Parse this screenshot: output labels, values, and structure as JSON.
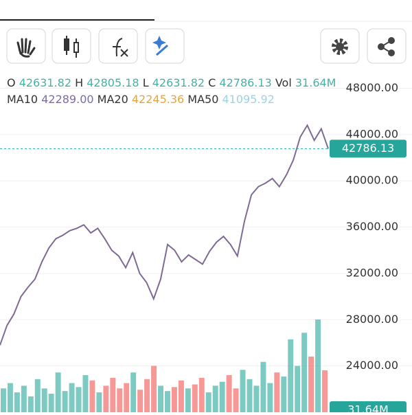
{
  "header": {
    "open_label": "O",
    "open": "42631.82",
    "high_label": "H",
    "high": "42805.18",
    "low_label": "L",
    "low": "42631.82",
    "close_label": "C",
    "close": "42786.13",
    "vol_label": "Vol",
    "vol": "31.64M",
    "ma10_label": "MA10",
    "ma10": "42289.00",
    "ma20_label": "MA20",
    "ma20": "42245.36",
    "ma50_label": "MA50",
    "ma50": "41095.92"
  },
  "chart_data": {
    "type": "line",
    "series": [
      {
        "color": "#7d6a95",
        "values": [
          25800,
          27500,
          28500,
          30000,
          30800,
          31500,
          33000,
          34200,
          35000,
          35300,
          35700,
          35900,
          36200,
          35500,
          35900,
          35000,
          34000,
          33500,
          32500,
          33800,
          32000,
          31200,
          29800,
          31500,
          34500,
          34000,
          33000,
          33600,
          33200,
          32800,
          33900,
          34700,
          35200,
          34500,
          33500,
          36500,
          38800,
          39500,
          39800,
          40200,
          39500,
          40500,
          41800,
          43800,
          44800,
          43500,
          44500,
          42786.13
        ]
      }
    ],
    "volume": {
      "up_color": "#26a69a",
      "down_color": "#ef5350",
      "values": [
        18,
        22,
        15,
        20,
        12,
        25,
        18,
        14,
        30,
        16,
        22,
        19,
        28,
        24,
        15,
        20,
        26,
        18,
        22,
        30,
        17,
        25,
        35,
        20,
        16,
        19,
        24,
        18,
        21,
        26,
        15,
        20,
        23,
        28,
        18,
        32,
        25,
        20,
        38,
        22,
        30,
        27,
        55,
        35,
        60,
        42,
        70,
        31.64
      ]
    },
    "last_price": 42786.13,
    "last_volume": "31.64M",
    "last_color": "#26a69a",
    "ylim": [
      20000,
      49100
    ],
    "yticks": [
      {
        "value": 24000,
        "label": "24000.00"
      },
      {
        "value": 28000,
        "label": "28000.00"
      },
      {
        "value": 32000,
        "label": "32000.00"
      },
      {
        "value": 36000,
        "label": "36000.00"
      },
      {
        "value": 40000,
        "label": "40000.00"
      },
      {
        "value": 44000,
        "label": "44000.00"
      },
      {
        "value": 48000,
        "label": "48000.00"
      }
    ],
    "grid": true
  }
}
